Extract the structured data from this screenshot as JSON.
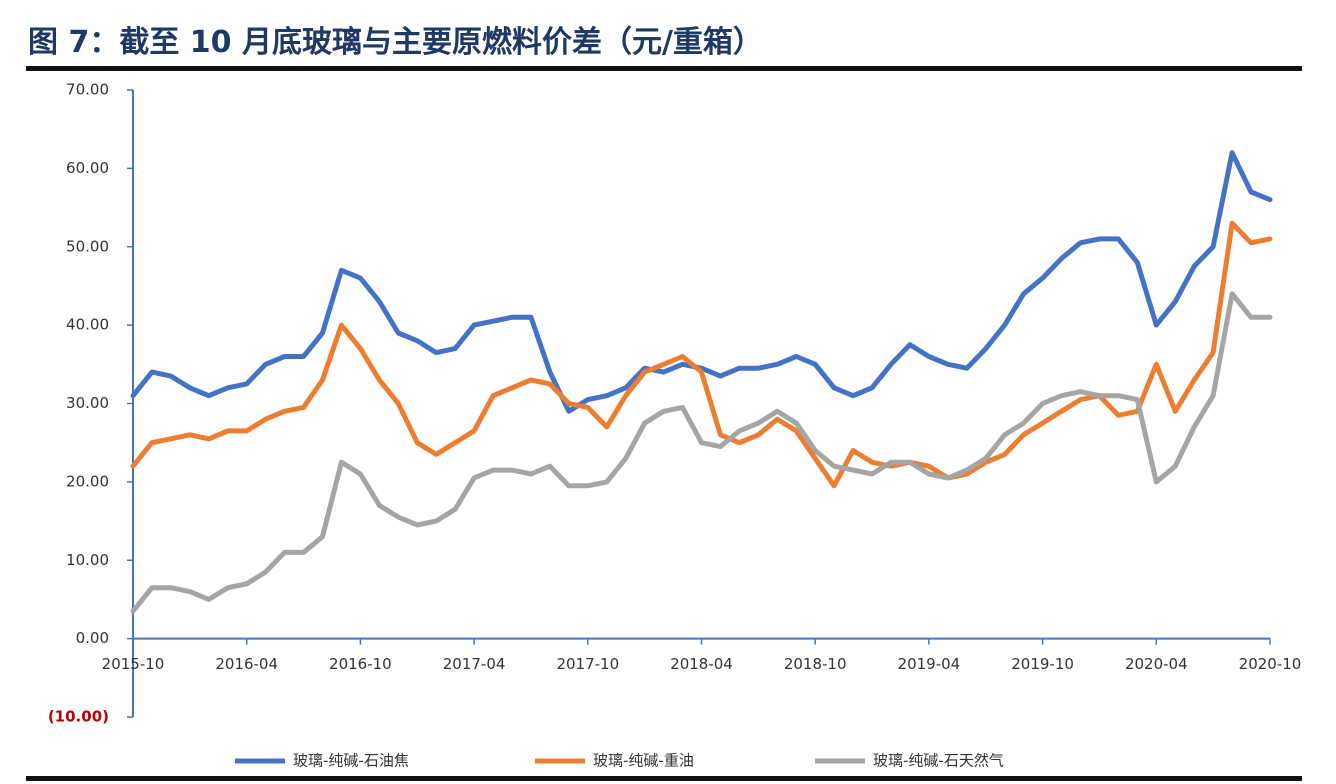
{
  "chart_data": {
    "type": "line",
    "title": "图 7：截至 10 月底玻璃与主要原燃料价差（元/重箱）",
    "categories": [
      "2015-10",
      null,
      null,
      null,
      null,
      null,
      "2016-04",
      null,
      null,
      null,
      null,
      null,
      "2016-10",
      null,
      null,
      null,
      null,
      null,
      "2017-04",
      null,
      null,
      null,
      null,
      null,
      "2017-10",
      null,
      null,
      null,
      null,
      null,
      "2018-04",
      null,
      null,
      null,
      null,
      null,
      "2018-10",
      null,
      null,
      null,
      null,
      null,
      "2019-04",
      null,
      null,
      null,
      null,
      null,
      "2019-10",
      null,
      null,
      null,
      null,
      null,
      "2020-04",
      null,
      null,
      null,
      null,
      null,
      "2020-10"
    ],
    "series": [
      {
        "name": "玻璃-纯碱-石油焦",
        "color": "#4472c4",
        "values": [
          31,
          34,
          33.5,
          32,
          31,
          32,
          32.5,
          35,
          36,
          36,
          39,
          47,
          46,
          43,
          39,
          38,
          36.5,
          37,
          40,
          40.5,
          41,
          41,
          34,
          29,
          30.5,
          31,
          32,
          34.5,
          34,
          35,
          34.5,
          33.5,
          34.5,
          34.5,
          35,
          36,
          35,
          32,
          31,
          32,
          35,
          37.5,
          36,
          35,
          34.5,
          37,
          40,
          44,
          46,
          48.5,
          50.5,
          51,
          51,
          48,
          40,
          43,
          47.5,
          50,
          62,
          57,
          56
        ]
      },
      {
        "name": "玻璃-纯碱-重油",
        "color": "#ed7d31",
        "values": [
          22,
          25,
          25.5,
          26,
          25.5,
          26.5,
          26.5,
          28,
          29,
          29.5,
          33,
          40,
          37,
          33,
          30,
          25,
          23.5,
          25,
          26.5,
          31,
          32,
          33,
          32.5,
          30,
          29.5,
          27,
          31,
          34,
          35,
          36,
          34,
          26,
          25,
          26,
          28,
          26.5,
          23,
          19.5,
          24,
          22.5,
          22,
          22.5,
          22,
          20.5,
          21,
          22.5,
          23.5,
          26,
          27.5,
          29,
          30.5,
          31,
          28.5,
          29,
          35,
          29,
          33,
          36.5,
          53,
          50.5,
          51
        ]
      },
      {
        "name": "玻璃-纯碱-石天然气",
        "color": "#a5a5a5",
        "values": [
          3.5,
          6.5,
          6.5,
          6,
          5,
          6.5,
          7,
          8.5,
          11,
          11,
          13,
          22.5,
          21,
          17,
          15.5,
          14.5,
          15,
          16.5,
          20.5,
          21.5,
          21.5,
          21,
          22,
          19.5,
          19.5,
          20,
          23,
          27.5,
          29,
          29.5,
          25,
          24.5,
          26.5,
          27.5,
          29,
          27.5,
          24,
          22,
          21.5,
          21,
          22.5,
          22.5,
          21,
          20.5,
          21.5,
          23,
          26,
          27.5,
          30,
          31,
          31.5,
          31,
          31,
          30.5,
          20,
          22,
          27,
          31,
          44,
          41,
          41
        ]
      }
    ],
    "ylim": [
      -10,
      70
    ],
    "yticks": [
      {
        "value": -10,
        "label": "(10.00)"
      },
      {
        "value": 0,
        "label": "0.00"
      },
      {
        "value": 10,
        "label": "10.00"
      },
      {
        "value": 20,
        "label": "20.00"
      },
      {
        "value": 30,
        "label": "30.00"
      },
      {
        "value": 40,
        "label": "40.00"
      },
      {
        "value": 50,
        "label": "50.00"
      },
      {
        "value": 60,
        "label": "60.00"
      },
      {
        "value": 70,
        "label": "70.00"
      }
    ],
    "legend": "bottom"
  }
}
